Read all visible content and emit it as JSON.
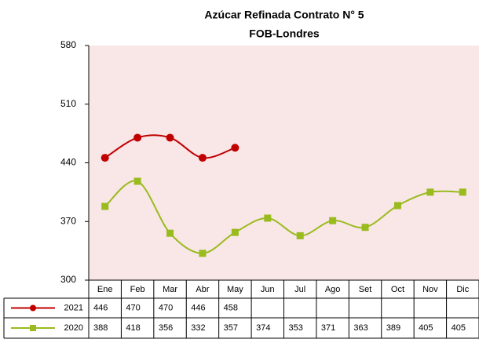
{
  "chart_data": {
    "type": "line",
    "title": "Azúcar Refinada Contrato N° 5",
    "subtitle": "FOB-Londres",
    "categories": [
      "Ene",
      "Feb",
      "Mar",
      "Abr",
      "May",
      "Jun",
      "Jul",
      "Ago",
      "Set",
      "Oct",
      "Nov",
      "Dic"
    ],
    "series": [
      {
        "name": "2021",
        "color": "#c00000",
        "marker": "circle",
        "values": [
          446,
          470,
          470,
          446,
          458,
          null,
          null,
          null,
          null,
          null,
          null,
          null
        ]
      },
      {
        "name": "2020",
        "color": "#99bb1e",
        "marker": "square",
        "values": [
          388,
          418,
          356,
          332,
          357,
          374,
          353,
          371,
          363,
          389,
          405,
          405
        ]
      }
    ],
    "ylim": [
      300,
      580
    ],
    "yticks": [
      300,
      370,
      440,
      510,
      580
    ],
    "smooth": true,
    "data_table": true,
    "plot_background": "#f9e6e6"
  }
}
